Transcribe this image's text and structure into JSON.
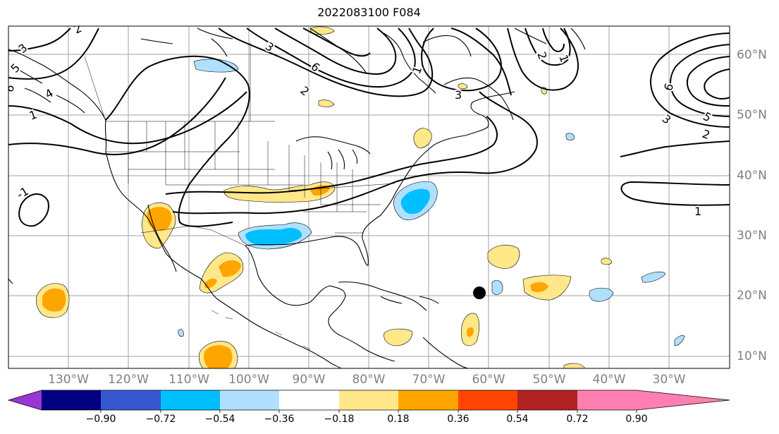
{
  "title": "2022083100 F084",
  "longitude_labels": [
    "130°W",
    "120°W",
    "110°W",
    "100°W",
    "90°W",
    "80°W",
    "70°W",
    "60°W",
    "50°W",
    "40°W",
    "30°W"
  ],
  "latitude_labels": [
    "60°N",
    "50°N",
    "40°N",
    "30°N",
    "20°N",
    "10°N"
  ],
  "colorbar": {
    "tick_labels": [
      "−0.90",
      "−0.72",
      "−0.54",
      "−0.36",
      "−0.18",
      "0.18",
      "0.36",
      "0.54",
      "0.72",
      "0.90"
    ],
    "colors": [
      "#9a35d6",
      "#000080",
      "#3558d0",
      "#00bfff",
      "#b0e0ff",
      "#ffffff",
      "#ffe88a",
      "#ffa500",
      "#ff4500",
      "#b22222",
      "#ff80b0"
    ]
  },
  "contour_labels": [
    "2",
    "3",
    "4",
    "5",
    "6",
    "1",
    "-1",
    "3",
    "6",
    "2",
    "1",
    "3",
    "2",
    "1",
    "6",
    "5",
    "2",
    "3",
    "1"
  ],
  "marker": "storm-position-dot"
}
